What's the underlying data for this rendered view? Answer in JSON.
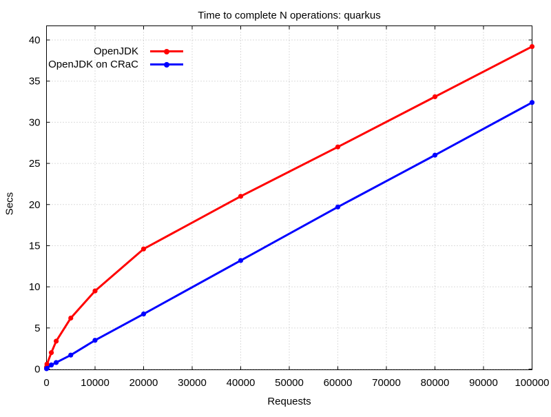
{
  "chart": {
    "title": "Time to complete N operations: quarkus",
    "xlabel": "Requests",
    "ylabel": "Secs"
  },
  "chart_data": {
    "type": "line",
    "title": "Time to complete N operations: quarkus",
    "xlabel": "Requests",
    "ylabel": "Secs",
    "xlim": [
      0,
      100000
    ],
    "ylim": [
      0,
      40
    ],
    "xticks": [
      0,
      10000,
      20000,
      30000,
      40000,
      50000,
      60000,
      70000,
      80000,
      90000,
      100000
    ],
    "yticks": [
      0,
      5,
      10,
      15,
      20,
      25,
      30,
      35,
      40
    ],
    "grid": "dotted",
    "grid_color": "#b8b8b8",
    "border_color": "#000000",
    "background": "#ffffff",
    "legend_position": "top-left-inside",
    "x": [
      10,
      100,
      1000,
      2000,
      5000,
      10000,
      20000,
      40000,
      60000,
      80000,
      100000
    ],
    "series": [
      {
        "name": "OpenJDK",
        "color": "#ff0000",
        "marker": "circle",
        "values": [
          0.25,
          0.6,
          2.0,
          3.4,
          6.2,
          9.5,
          14.6,
          21.0,
          27.0,
          33.1,
          39.2
        ]
      },
      {
        "name": "OpenJDK on CRaC",
        "color": "#0000ff",
        "marker": "circle",
        "values": [
          0.05,
          0.1,
          0.5,
          0.8,
          1.7,
          3.5,
          6.7,
          13.2,
          19.7,
          26.0,
          32.4
        ]
      }
    ]
  }
}
